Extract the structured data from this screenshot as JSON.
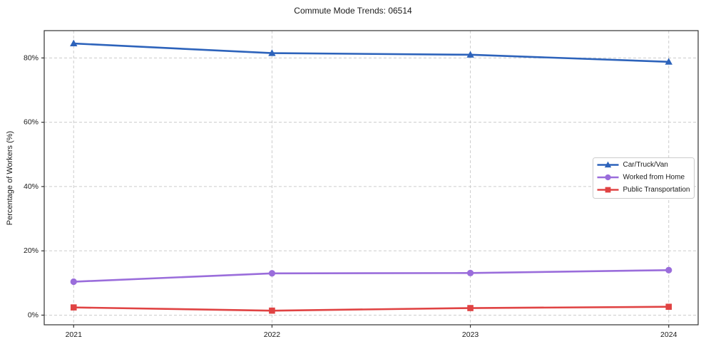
{
  "title": "Commute Mode Trends: 06514",
  "chart_data": {
    "type": "line",
    "title": "Commute Mode Trends: 06514",
    "categories": [
      "2021",
      "2022",
      "2023",
      "2024"
    ],
    "series": [
      {
        "name": "Car/Truck/Van",
        "marker": "triangle",
        "color": "#2d63bb",
        "values": [
          84.5,
          81.5,
          81.0,
          78.8
        ]
      },
      {
        "name": "Worked from Home",
        "marker": "circle",
        "color": "#9a6ddb",
        "values": [
          10.4,
          13.0,
          13.1,
          14.0
        ]
      },
      {
        "name": "Public Transportation",
        "marker": "square",
        "color": "#e04343",
        "values": [
          2.4,
          1.4,
          2.2,
          2.6
        ]
      }
    ],
    "xlabel": "",
    "ylabel": "Percentage of Workers (%)",
    "yticks": [
      0,
      20,
      40,
      60,
      80
    ],
    "ytick_labels": [
      "0%",
      "20%",
      "40%",
      "60%",
      "80%"
    ],
    "ylim": [
      -3,
      88.5
    ],
    "grid": true,
    "grid_style": "dashed",
    "legend_position": "center-right"
  },
  "colors": {
    "background": "#ffffff",
    "grid": "#cccccc",
    "spine": "#333333",
    "text": "#1a1a1a",
    "legend_border": "#cccccc",
    "legend_background": "#ffffff"
  }
}
